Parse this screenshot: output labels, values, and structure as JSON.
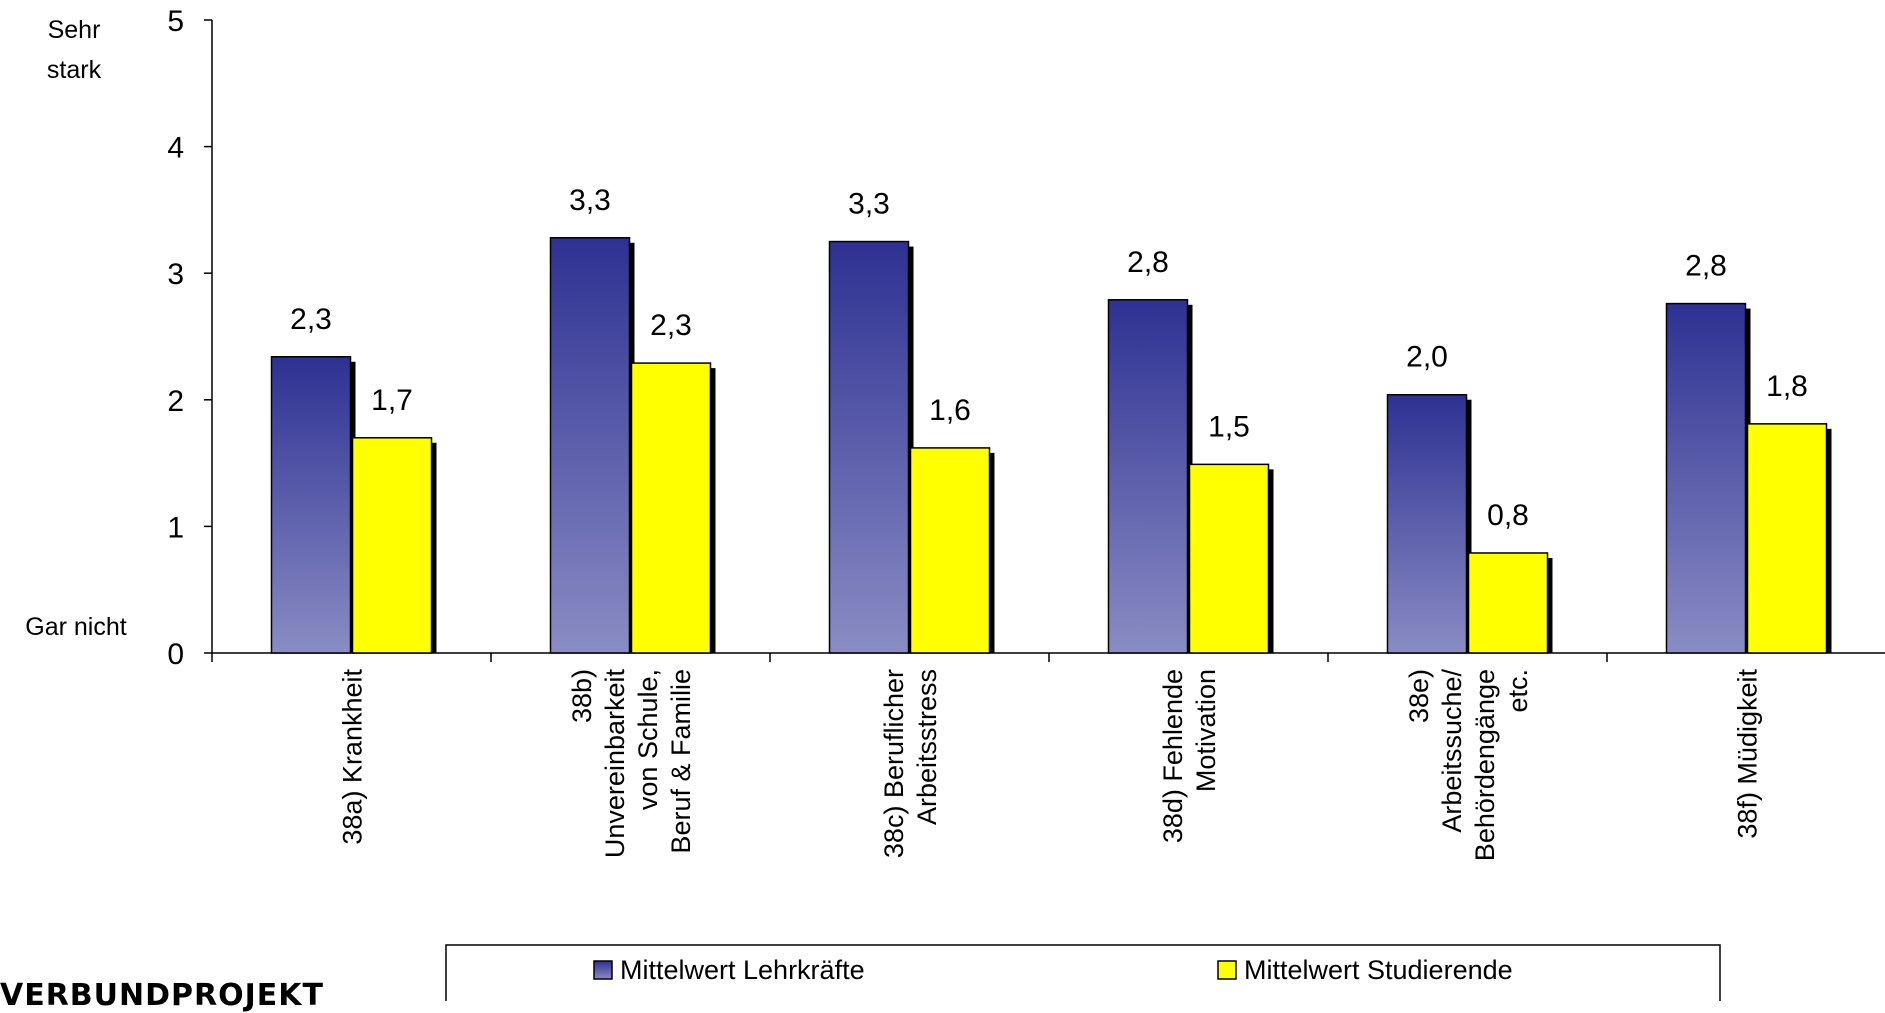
{
  "chart_data": {
    "type": "bar",
    "ylim": [
      0,
      5
    ],
    "yticks": [
      "0",
      "1",
      "2",
      "3",
      "4",
      "5"
    ],
    "ylabel_top": [
      "Sehr",
      "stark"
    ],
    "ylabel_bottom": "Gar nicht",
    "categories": [
      [
        "38a) Krankheit"
      ],
      [
        "38b)",
        "Unvereinbarkeit",
        "von Schule,",
        "Beruf & Familie"
      ],
      [
        "38c) Beruflicher",
        "Arbeitsstress"
      ],
      [
        "38d) Fehlende",
        "Motivation"
      ],
      [
        "38e)",
        "Arbeitssuche/",
        "Behördengänge",
        "etc."
      ],
      [
        "38f) Müdigkeit"
      ]
    ],
    "series": [
      {
        "name": "Mittelwert Lehrkräfte",
        "color_top": "#2e3192",
        "color_bottom": "#8a8cc4",
        "values": [
          2.34,
          3.28,
          3.25,
          2.79,
          2.04,
          2.76
        ],
        "labels": [
          "2,3",
          "3,3",
          "3,3",
          "2,8",
          "2,0",
          "2,8"
        ]
      },
      {
        "name": "Mittelwert Studierende",
        "color": "#ffff00",
        "values": [
          1.7,
          2.29,
          1.62,
          1.49,
          0.79,
          1.81
        ],
        "labels": [
          "1,7",
          "2,3",
          "1,6",
          "1,5",
          "0,8",
          "1,8"
        ]
      }
    ],
    "legend_position": "bottom"
  },
  "footer": {
    "logo_text": "VERBUNDPROJEKT"
  }
}
